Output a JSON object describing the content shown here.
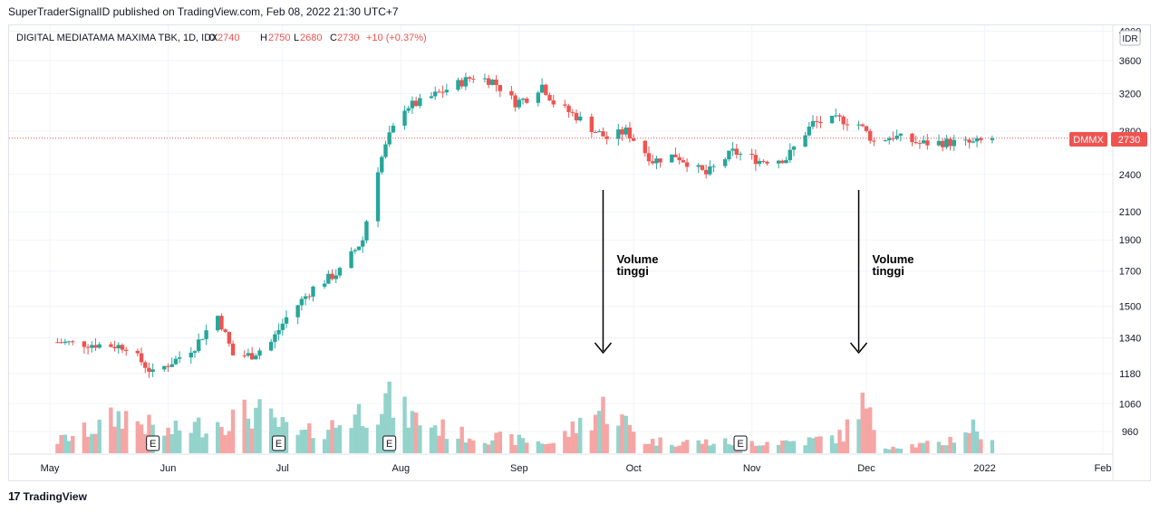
{
  "header": {
    "published": "SuperTraderSignalID published on TradingView.com, Feb 08, 2022 21:30 UTC+7"
  },
  "legend": {
    "symbol": "DIGITAL MEDIATAMA MAXIMA TBK, 1D, IDX",
    "o_label": "O",
    "o": "2740",
    "h_label": "H",
    "h": "2750",
    "l_label": "L",
    "l": "2680",
    "c_label": "C",
    "c": "2730",
    "change": "+10 (+0.37%)"
  },
  "price_scale": {
    "currency": "IDR",
    "ticker_tag": "DMMX",
    "last_price": "2730"
  },
  "footer": {
    "brand": "TradingView",
    "logo": "17"
  },
  "colors": {
    "up": "#26a69a",
    "down": "#ef5350",
    "up_volume": "#93d3cb",
    "down_volume": "#f5a6a4",
    "grid": "#f0f3fa",
    "last_price_line": "#ef5350"
  },
  "annotations": [
    {
      "text_line1": "Volume",
      "text_line2": "tinggi",
      "date": "2021-09-23"
    },
    {
      "text_line1": "Volume",
      "text_line2": "tinggi",
      "date": "2021-11-29"
    }
  ],
  "chart_data": {
    "type": "candlestick",
    "x_ticks": [
      "May",
      "Jun",
      "Jul",
      "Aug",
      "Sep",
      "Oct",
      "Nov",
      "Dec",
      "2022",
      "Feb"
    ],
    "y_ticks": [
      "960",
      "1060",
      "1180",
      "1340",
      "1500",
      "1700",
      "1900",
      "2100",
      "2400",
      "2800",
      "3200",
      "3600",
      "4000"
    ],
    "y_scale": "log",
    "earnings_markers": [
      {
        "date": "2021-05-28",
        "label": "E"
      },
      {
        "date": "2021-06-30",
        "label": "E"
      },
      {
        "date": "2021-07-29",
        "label": "E"
      },
      {
        "date": "2021-10-29",
        "label": "E"
      }
    ],
    "price_path": [
      [
        "2021-05-03",
        1320
      ],
      [
        "2021-05-21",
        1300
      ],
      [
        "2021-05-28",
        1180
      ],
      [
        "2021-06-03",
        1240
      ],
      [
        "2021-06-08",
        1300
      ],
      [
        "2021-06-14",
        1450
      ],
      [
        "2021-06-18",
        1260
      ],
      [
        "2021-06-23",
        1260
      ],
      [
        "2021-06-28",
        1320
      ],
      [
        "2021-07-02",
        1440
      ],
      [
        "2021-07-09",
        1600
      ],
      [
        "2021-07-16",
        1700
      ],
      [
        "2021-07-22",
        1900
      ],
      [
        "2021-07-26",
        2450
      ],
      [
        "2021-07-29",
        2750
      ],
      [
        "2021-08-02",
        3050
      ],
      [
        "2021-08-06",
        3100
      ],
      [
        "2021-08-13",
        3250
      ],
      [
        "2021-08-20",
        3400
      ],
      [
        "2021-08-25",
        3350
      ],
      [
        "2021-08-31",
        3100
      ],
      [
        "2021-09-03",
        3150
      ],
      [
        "2021-09-07",
        3300
      ],
      [
        "2021-09-10",
        3100
      ],
      [
        "2021-09-16",
        2950
      ],
      [
        "2021-09-21",
        2800
      ],
      [
        "2021-09-24",
        2730
      ],
      [
        "2021-09-29",
        2800
      ],
      [
        "2021-10-06",
        2520
      ],
      [
        "2021-10-12",
        2570
      ],
      [
        "2021-10-20",
        2400
      ],
      [
        "2021-10-27",
        2600
      ],
      [
        "2021-11-03",
        2520
      ],
      [
        "2021-11-10",
        2540
      ],
      [
        "2021-11-17",
        2880
      ],
      [
        "2021-11-24",
        2920
      ],
      [
        "2021-11-29",
        2870
      ],
      [
        "2021-12-03",
        2700
      ],
      [
        "2021-12-08",
        2750
      ],
      [
        "2021-12-15",
        2680
      ],
      [
        "2021-12-22",
        2690
      ],
      [
        "2021-12-29",
        2680
      ],
      [
        "2022-01-03",
        2730
      ]
    ],
    "volume_profile": [
      [
        "2021-05-03",
        0.18
      ],
      [
        "2021-05-14",
        0.4
      ],
      [
        "2021-05-20",
        0.58
      ],
      [
        "2021-05-31",
        0.3
      ],
      [
        "2021-06-15",
        0.48
      ],
      [
        "2021-06-24",
        0.62
      ],
      [
        "2021-07-05",
        0.26
      ],
      [
        "2021-07-15",
        0.42
      ],
      [
        "2021-07-23",
        0.66
      ],
      [
        "2021-07-28",
        0.8
      ],
      [
        "2021-08-03",
        0.55
      ],
      [
        "2021-08-16",
        0.28
      ],
      [
        "2021-08-31",
        0.2
      ],
      [
        "2021-09-10",
        0.15
      ],
      [
        "2021-09-21",
        0.6
      ],
      [
        "2021-09-24",
        0.7
      ],
      [
        "2021-10-04",
        0.18
      ],
      [
        "2021-10-25",
        0.16
      ],
      [
        "2021-11-15",
        0.18
      ],
      [
        "2021-11-25",
        0.26
      ],
      [
        "2021-11-29",
        0.8
      ],
      [
        "2021-12-06",
        0.1
      ],
      [
        "2021-12-21",
        0.14
      ],
      [
        "2021-12-29",
        0.4
      ],
      [
        "2022-01-03",
        0.14
      ]
    ]
  }
}
